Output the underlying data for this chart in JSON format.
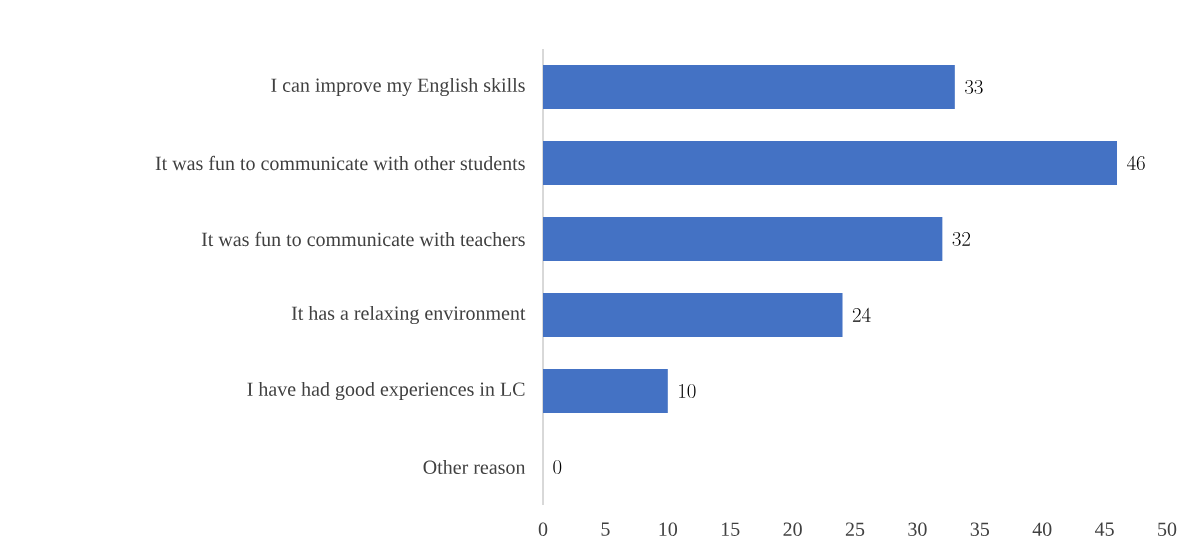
{
  "chart_data": {
    "type": "bar",
    "orientation": "horizontal",
    "categories": [
      "I can improve my English skills",
      "It was fun to communicate with other students",
      "It was fun to communicate with teachers",
      "It has a relaxing environment",
      "I have had good experiences in LC",
      "Other reason"
    ],
    "values": [
      33,
      46,
      32,
      24,
      10,
      0
    ],
    "color": "#4472c4",
    "xlim": [
      0,
      50
    ],
    "xticks": [
      0,
      5,
      10,
      15,
      20,
      25,
      30,
      35,
      40,
      45,
      50
    ],
    "data_labels": true,
    "grid": false
  }
}
